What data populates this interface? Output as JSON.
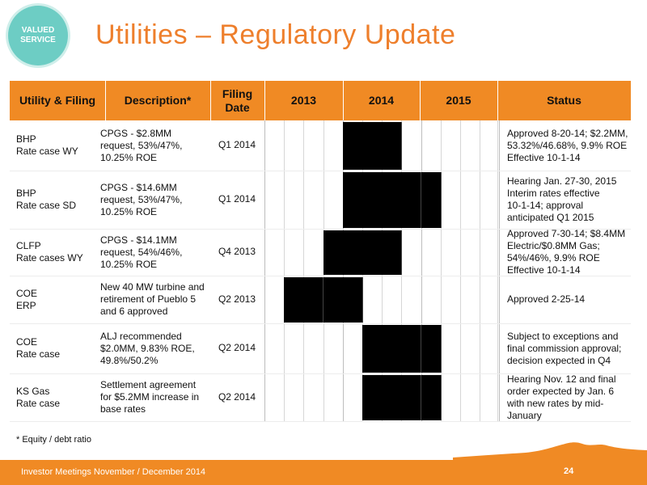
{
  "badge": {
    "line1": "VALUED",
    "line2": "SERVICE"
  },
  "title": "Utilities – Regulatory Update",
  "colors": {
    "accent": "#f08a24",
    "title": "#ee7f2c",
    "badge": "#6dcdc4",
    "bar": "#000000"
  },
  "table": {
    "headers": {
      "utility": "Utility & Filing",
      "description": "Description*",
      "filing_date_1": "Filing",
      "filing_date_2": "Date",
      "y2013": "2013",
      "y2014": "2014",
      "y2015": "2015",
      "status": "Status"
    },
    "rows": [
      {
        "utility": [
          "BHP",
          "Rate case WY"
        ],
        "description": [
          "CPGS - $2.8MM",
          "request, 53%/47%,",
          "10.25% ROE"
        ],
        "filing_date": "Q1 2014",
        "status": [
          "Approved 8-20-14; $2.2MM,",
          "53.32%/46.68%, 9.9% ROE",
          "Effective 10-1-14"
        ],
        "gantt_quarters": [
          "2014-Q1",
          "2014-Q2",
          "2014-Q3"
        ]
      },
      {
        "utility": [
          "BHP",
          "Rate case SD"
        ],
        "description": [
          "CPGS - $14.6MM",
          "request, 53%/47%,",
          "10.25% ROE"
        ],
        "filing_date": "Q1 2014",
        "status": [
          "Hearing Jan. 27-30, 2015",
          "Interim rates effective",
          "10-1-14; approval",
          "anticipated Q1 2015"
        ],
        "gantt_quarters": [
          "2014-Q1",
          "2014-Q2",
          "2014-Q3",
          "2014-Q4",
          "2015-Q1"
        ]
      },
      {
        "utility": [
          "CLFP",
          "Rate cases WY"
        ],
        "description": [
          "CPGS - $14.1MM",
          "request, 54%/46%,",
          "10.25% ROE"
        ],
        "filing_date": "Q4 2013",
        "status": [
          "Approved 7-30-14; $8.4MM",
          "Electric/$0.8MM Gas;",
          "54%/46%, 9.9% ROE",
          "Effective 10-1-14"
        ],
        "gantt_quarters": [
          "2013-Q4",
          "2014-Q1",
          "2014-Q2",
          "2014-Q3"
        ]
      },
      {
        "utility": [
          "COE",
          "ERP"
        ],
        "description": [
          "New 40 MW turbine and",
          "retirement of Pueblo 5",
          "and 6 approved"
        ],
        "filing_date": "Q2 2013",
        "status": [
          "Approved 2-25-14"
        ],
        "gantt_quarters": [
          "2013-Q2",
          "2013-Q3",
          "2013-Q4",
          "2014-Q1"
        ]
      },
      {
        "utility": [
          "COE",
          "Rate case"
        ],
        "description": [
          "ALJ recommended",
          "$2.0MM, 9.83% ROE,",
          "49.8%/50.2%"
        ],
        "filing_date": "Q2 2014",
        "status": [
          "Subject to exceptions and",
          "final commission approval;",
          "decision expected in Q4"
        ],
        "gantt_quarters": [
          "2014-Q2",
          "2014-Q3",
          "2014-Q4",
          "2015-Q1"
        ]
      },
      {
        "utility": [
          "KS Gas",
          "Rate case"
        ],
        "description": [
          "Settlement agreement",
          "for $5.2MM increase in",
          "base rates"
        ],
        "filing_date": "Q2 2014",
        "status": [
          "Hearing Nov. 12 and final",
          "order expected by Jan. 6",
          "with new rates by mid-",
          "January"
        ],
        "gantt_quarters": [
          "2014-Q2",
          "2014-Q3",
          "2014-Q4",
          "2015-Q1"
        ]
      }
    ]
  },
  "footnote": "*   Equity / debt ratio",
  "footer": {
    "text": "Investor Meetings November / December 2014",
    "page": "24"
  }
}
